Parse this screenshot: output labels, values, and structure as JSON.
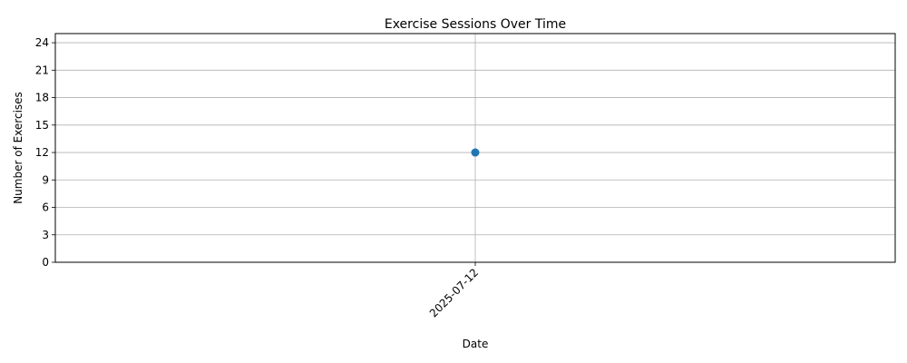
{
  "chart_data": {
    "type": "line",
    "title": "Exercise Sessions Over Time",
    "xlabel": "Date",
    "ylabel": "Number of Exercises",
    "x": [
      "2025-07-12"
    ],
    "series": [
      {
        "values": [
          12
        ],
        "color": "#1f77b4",
        "marker": "circle"
      }
    ],
    "ylim": [
      0,
      25
    ],
    "yticks": [
      0,
      3,
      6,
      9,
      12,
      15,
      18,
      21,
      24
    ],
    "grid": true,
    "legend": "none"
  }
}
